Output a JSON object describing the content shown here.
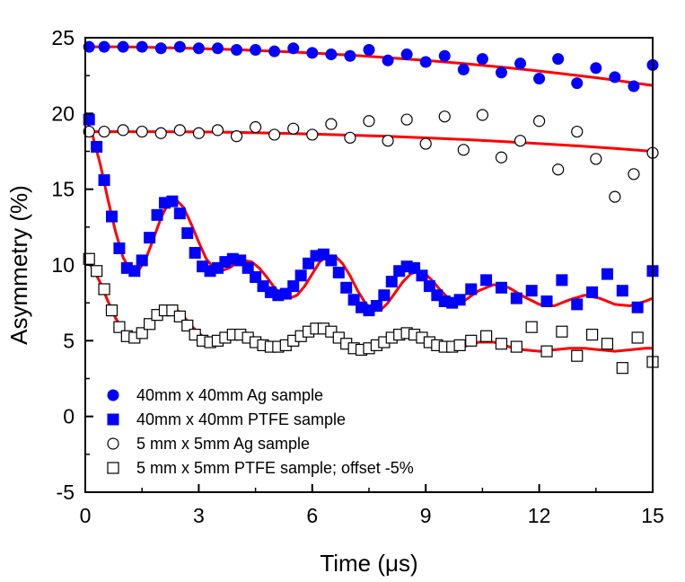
{
  "chart_data": {
    "type": "scatter",
    "xlabel": "Time (μs)",
    "ylabel": "Asymmetry (%)",
    "xlim": [
      0,
      15
    ],
    "ylim": [
      -5,
      25
    ],
    "x_ticks": [
      "0",
      "3",
      "6",
      "9",
      "12",
      "15"
    ],
    "y_ticks": [
      "-5",
      "0",
      "5",
      "10",
      "15",
      "20",
      "25"
    ],
    "grid": false,
    "legend_position": "bottom-left",
    "series": [
      {
        "name": "40mm x 40mm Ag sample",
        "marker": "filled-circle",
        "color": "#0000ff",
        "x": [
          0.1,
          0.5,
          1,
          1.5,
          2,
          2.5,
          3,
          3.5,
          4,
          4.5,
          5,
          5.5,
          6,
          6.5,
          7,
          7.5,
          8,
          8.5,
          9,
          9.5,
          10,
          10.5,
          11,
          11.5,
          12,
          12.5,
          13,
          13.5,
          14,
          14.5,
          15
        ],
        "y": [
          24.4,
          24.4,
          24.4,
          24.4,
          24.3,
          24.4,
          24.3,
          24.3,
          24.2,
          24.2,
          24.1,
          24.3,
          24.0,
          23.9,
          23.8,
          24.2,
          23.5,
          23.9,
          23.4,
          23.8,
          22.9,
          23.6,
          22.7,
          23.3,
          22.3,
          23.6,
          22.0,
          23.0,
          22.4,
          21.8,
          23.2
        ]
      },
      {
        "name": "40mm x 40mm PTFE sample",
        "marker": "filled-square",
        "color": "#0000ff",
        "x": [
          0.1,
          0.3,
          0.5,
          0.7,
          0.9,
          1.1,
          1.3,
          1.5,
          1.7,
          1.9,
          2.1,
          2.3,
          2.5,
          2.7,
          2.9,
          3.1,
          3.3,
          3.5,
          3.7,
          3.9,
          4.1,
          4.3,
          4.5,
          4.7,
          4.9,
          5.1,
          5.3,
          5.5,
          5.7,
          5.9,
          6.1,
          6.3,
          6.5,
          6.7,
          6.9,
          7.1,
          7.3,
          7.5,
          7.7,
          7.9,
          8.1,
          8.3,
          8.5,
          8.7,
          8.9,
          9.1,
          9.3,
          9.5,
          9.7,
          9.9,
          10.2,
          10.6,
          11,
          11.4,
          11.8,
          12.2,
          12.6,
          13,
          13.4,
          13.8,
          14.2,
          14.6,
          15
        ],
        "y": [
          19.6,
          17.8,
          15.6,
          13.2,
          11.1,
          9.8,
          9.6,
          10.3,
          11.8,
          13.3,
          14.1,
          14.2,
          13.4,
          12.1,
          10.8,
          9.9,
          9.6,
          9.8,
          10.2,
          10.4,
          10.3,
          9.8,
          9.2,
          8.6,
          8.2,
          8.0,
          8.1,
          8.6,
          9.3,
          10.1,
          10.6,
          10.7,
          10.3,
          9.5,
          8.5,
          7.7,
          7.2,
          7.0,
          7.3,
          8.0,
          8.9,
          9.6,
          9.9,
          9.8,
          9.3,
          8.6,
          8.0,
          7.6,
          7.5,
          7.7,
          8.4,
          9.0,
          8.5,
          7.8,
          8.3,
          7.6,
          9.0,
          7.4,
          8.2,
          9.4,
          8.3,
          7.2,
          9.6
        ]
      },
      {
        "name": "5 mm x 5mm Ag sample",
        "marker": "open-circle",
        "color": "#000000",
        "x": [
          0.1,
          0.5,
          1,
          1.5,
          2,
          2.5,
          3,
          3.5,
          4,
          4.5,
          5,
          5.5,
          6,
          6.5,
          7,
          7.5,
          8,
          8.5,
          9,
          9.5,
          10,
          10.5,
          11,
          11.5,
          12,
          12.5,
          13,
          13.5,
          14,
          14.5,
          15
        ],
        "y": [
          18.8,
          18.8,
          18.9,
          18.8,
          18.7,
          18.9,
          18.7,
          18.9,
          18.5,
          19.1,
          18.6,
          19.0,
          18.6,
          19.3,
          18.4,
          19.5,
          18.2,
          19.6,
          18.0,
          19.8,
          17.6,
          19.9,
          17.1,
          18.2,
          19.5,
          16.3,
          18.8,
          17.0,
          14.5,
          16.0,
          17.4
        ]
      },
      {
        "name": "5 mm x 5mm PTFE sample; offset -5%",
        "marker": "open-square",
        "color": "#000000",
        "x": [
          0.1,
          0.3,
          0.5,
          0.7,
          0.9,
          1.1,
          1.3,
          1.5,
          1.7,
          1.9,
          2.1,
          2.3,
          2.5,
          2.7,
          2.9,
          3.1,
          3.3,
          3.5,
          3.7,
          3.9,
          4.1,
          4.3,
          4.5,
          4.7,
          4.9,
          5.1,
          5.3,
          5.5,
          5.7,
          5.9,
          6.1,
          6.3,
          6.5,
          6.7,
          6.9,
          7.1,
          7.3,
          7.5,
          7.7,
          7.9,
          8.1,
          8.3,
          8.5,
          8.7,
          8.9,
          9.1,
          9.3,
          9.5,
          9.7,
          9.9,
          10.2,
          10.6,
          11,
          11.4,
          11.8,
          12.2,
          12.6,
          13,
          13.4,
          13.8,
          14.2,
          14.6,
          15
        ],
        "y": [
          10.4,
          9.6,
          8.4,
          7.0,
          5.9,
          5.3,
          5.2,
          5.5,
          6.1,
          6.7,
          7.0,
          7.0,
          6.6,
          6.0,
          5.4,
          5.0,
          4.9,
          5.0,
          5.2,
          5.4,
          5.4,
          5.2,
          4.9,
          4.7,
          4.6,
          4.6,
          4.7,
          5.0,
          5.3,
          5.6,
          5.8,
          5.8,
          5.6,
          5.2,
          4.8,
          4.5,
          4.4,
          4.5,
          4.7,
          4.9,
          5.2,
          5.4,
          5.5,
          5.4,
          5.2,
          4.9,
          4.7,
          4.6,
          4.6,
          4.7,
          5.0,
          5.3,
          4.8,
          4.6,
          5.9,
          4.3,
          5.6,
          4.0,
          5.4,
          4.8,
          3.2,
          5.2,
          3.6
        ]
      }
    ],
    "fits": [
      {
        "color": "#ff0000",
        "x": [
          0,
          0.5,
          1,
          1.5,
          2,
          2.5,
          3,
          3.5,
          4,
          4.5,
          5,
          5.5,
          6,
          6.5,
          7,
          7.5,
          8,
          8.5,
          9,
          9.5,
          10,
          10.5,
          11,
          11.5,
          12,
          12.5,
          13,
          13.5,
          14,
          14.5,
          15
        ],
        "y": [
          24.4,
          24.4,
          24.4,
          24.38,
          24.35,
          24.32,
          24.29,
          24.25,
          24.21,
          24.16,
          24.11,
          24.05,
          23.99,
          23.92,
          23.85,
          23.77,
          23.68,
          23.59,
          23.5,
          23.4,
          23.29,
          23.18,
          23.06,
          22.93,
          22.8,
          22.66,
          22.51,
          22.36,
          22.2,
          22.02,
          21.85
        ]
      },
      {
        "color": "#ff0000",
        "x": [
          0,
          1,
          2,
          3,
          4,
          5,
          6,
          7,
          8,
          9,
          10,
          11,
          12,
          13,
          14,
          15
        ],
        "y": [
          18.8,
          18.8,
          18.8,
          18.78,
          18.75,
          18.7,
          18.64,
          18.57,
          18.49,
          18.39,
          18.28,
          18.15,
          18.01,
          17.86,
          17.69,
          17.5
        ]
      },
      {
        "color": "#ff0000",
        "x": [
          0,
          0.2,
          0.4,
          0.6,
          0.8,
          1,
          1.2,
          1.4,
          1.6,
          1.8,
          2,
          2.2,
          2.4,
          2.6,
          2.8,
          3,
          3.2,
          3.4,
          3.6,
          3.8,
          4,
          4.2,
          4.4,
          4.6,
          4.8,
          5,
          5.2,
          5.4,
          5.6,
          5.8,
          6,
          6.2,
          6.4,
          6.6,
          6.8,
          7,
          7.2,
          7.4,
          7.6,
          7.8,
          8,
          8.2,
          8.4,
          8.6,
          8.8,
          9,
          9.2,
          9.4,
          9.6,
          9.8,
          10,
          10.4,
          10.8,
          11.2,
          11.6,
          12,
          12.4,
          12.8,
          13.2,
          13.6,
          14,
          14.4,
          14.8,
          15
        ],
        "y": [
          19.8,
          18.5,
          16.6,
          14.3,
          12.2,
          10.5,
          9.6,
          9.6,
          10.4,
          11.7,
          13.1,
          14.1,
          14.3,
          13.8,
          12.7,
          11.5,
          10.4,
          9.8,
          9.6,
          9.8,
          10.1,
          10.3,
          10.2,
          9.8,
          9.2,
          8.5,
          8.0,
          7.8,
          8.0,
          8.6,
          9.4,
          10.2,
          10.6,
          10.6,
          10.1,
          9.3,
          8.3,
          7.5,
          7.0,
          7.0,
          7.5,
          8.2,
          8.9,
          9.4,
          9.6,
          9.4,
          8.9,
          8.3,
          7.8,
          7.5,
          7.6,
          8.3,
          8.7,
          8.5,
          7.9,
          7.4,
          7.3,
          7.7,
          8.0,
          7.8,
          7.4,
          7.3,
          7.6,
          7.8
        ]
      },
      {
        "color": "#ff0000",
        "x": [
          0,
          0.2,
          0.4,
          0.6,
          0.8,
          1,
          1.2,
          1.4,
          1.6,
          1.8,
          2,
          2.2,
          2.4,
          2.6,
          2.8,
          3,
          3.2,
          3.4,
          3.6,
          3.8,
          4,
          4.2,
          4.4,
          4.6,
          4.8,
          5,
          5.2,
          5.4,
          5.6,
          5.8,
          6,
          6.2,
          6.4,
          6.6,
          6.8,
          7,
          7.2,
          7.4,
          7.6,
          7.8,
          8,
          8.2,
          8.4,
          8.6,
          8.8,
          9,
          9.2,
          9.4,
          9.6,
          9.8,
          10,
          10.4,
          10.8,
          11.2,
          11.6,
          12,
          12.4,
          12.8,
          13.2,
          13.6,
          14,
          14.4,
          14.8,
          15
        ],
        "y": [
          10.4,
          9.8,
          8.8,
          7.6,
          6.5,
          5.7,
          5.3,
          5.3,
          5.7,
          6.3,
          6.9,
          7.2,
          7.1,
          6.6,
          6.0,
          5.5,
          5.1,
          4.9,
          5.0,
          5.2,
          5.4,
          5.4,
          5.3,
          5.0,
          4.8,
          4.6,
          4.6,
          4.7,
          4.9,
          5.2,
          5.5,
          5.7,
          5.7,
          5.5,
          5.1,
          4.7,
          4.4,
          4.3,
          4.4,
          4.7,
          5.0,
          5.3,
          5.5,
          5.5,
          5.3,
          5.0,
          4.7,
          4.5,
          4.4,
          4.5,
          4.6,
          4.9,
          4.9,
          4.6,
          4.4,
          4.3,
          4.4,
          4.5,
          4.5,
          4.4,
          4.3,
          4.4,
          4.5,
          4.5
        ]
      }
    ]
  }
}
